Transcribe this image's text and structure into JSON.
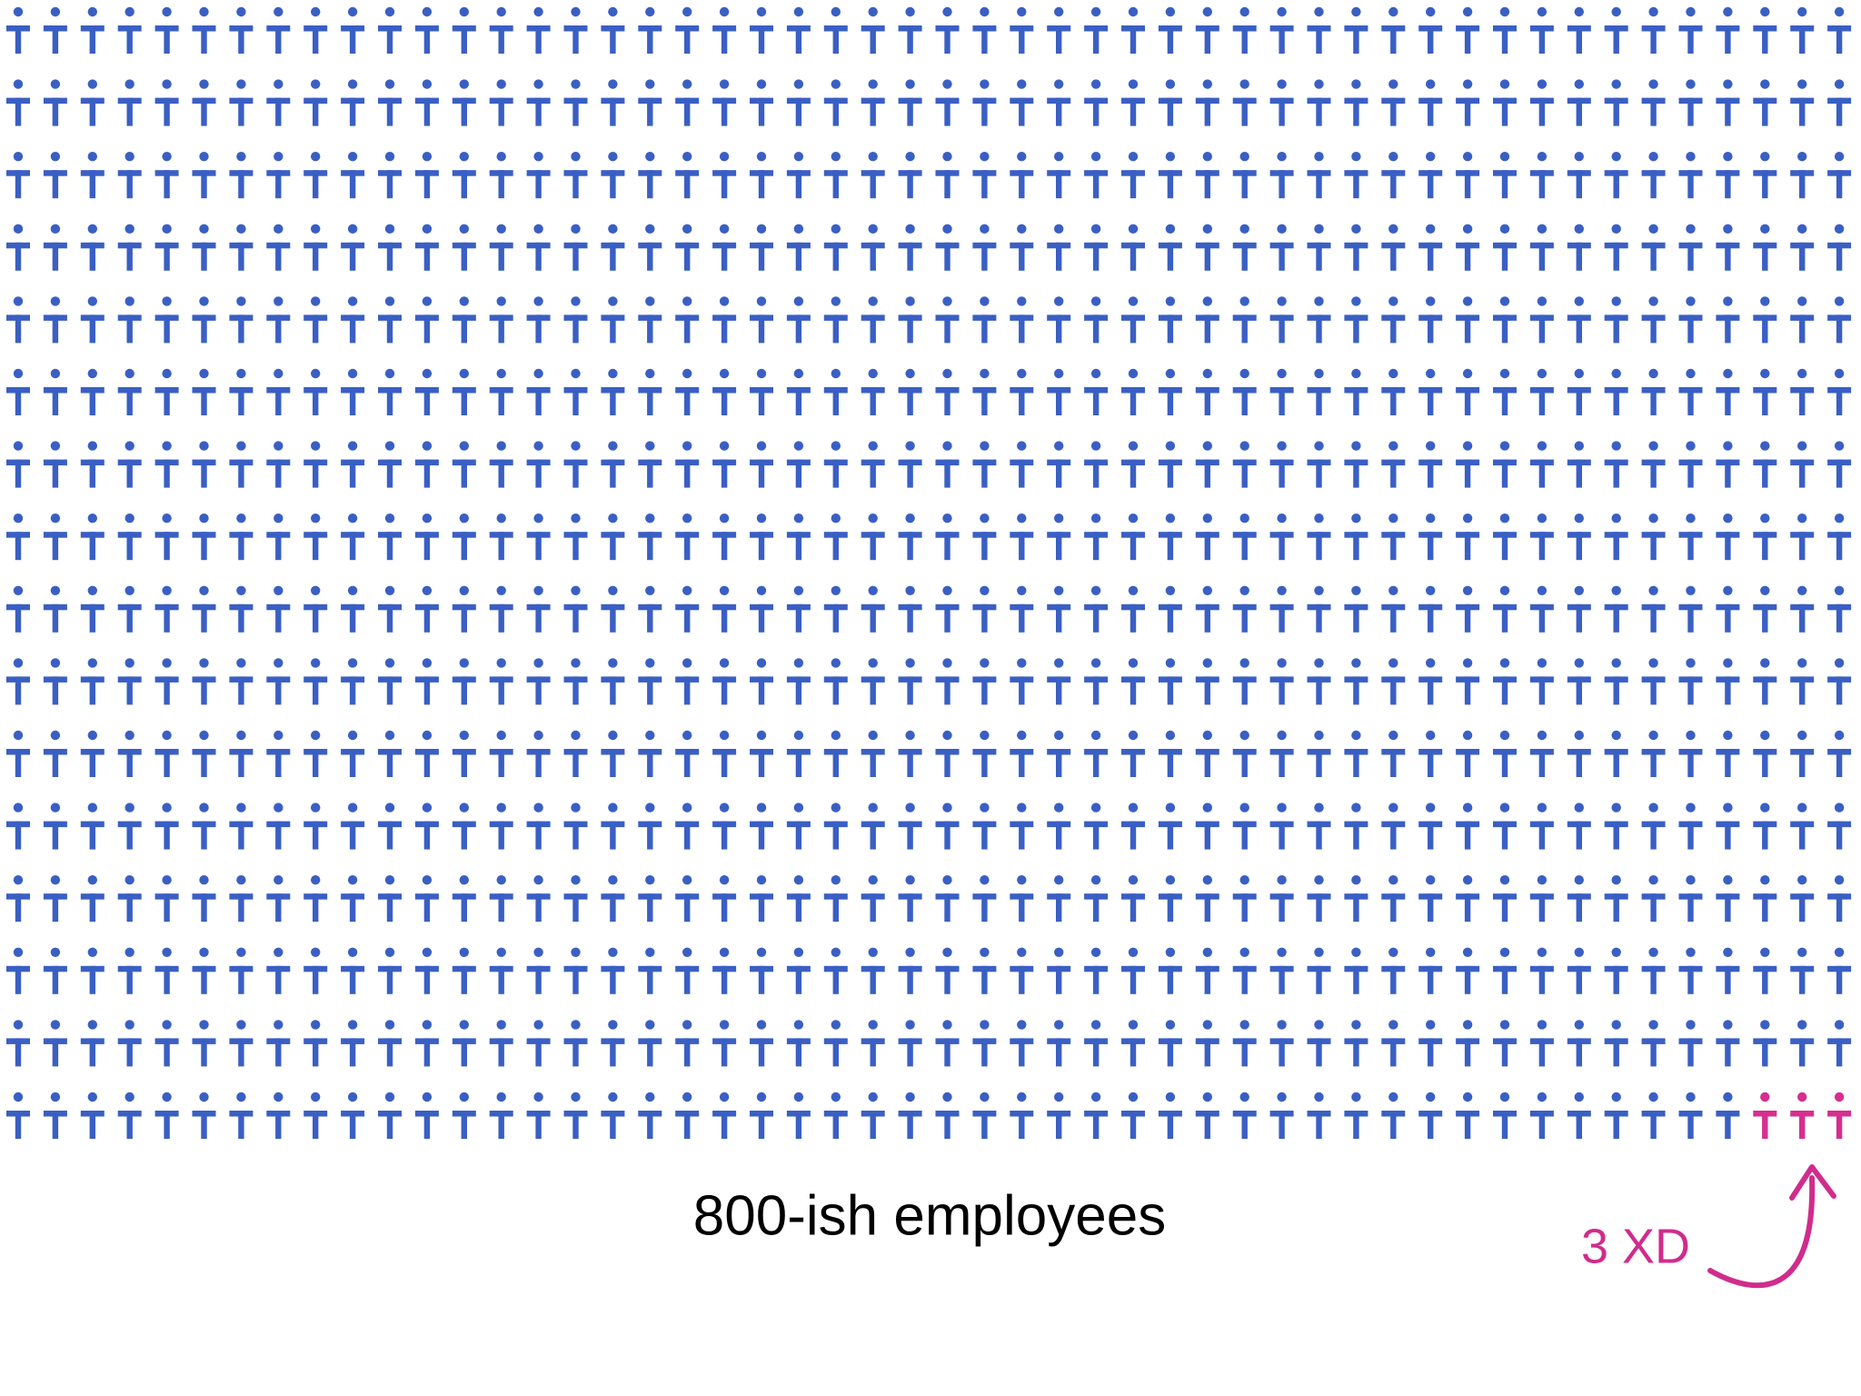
{
  "caption": "800-ish employees",
  "annotation": "3 XD"
}
